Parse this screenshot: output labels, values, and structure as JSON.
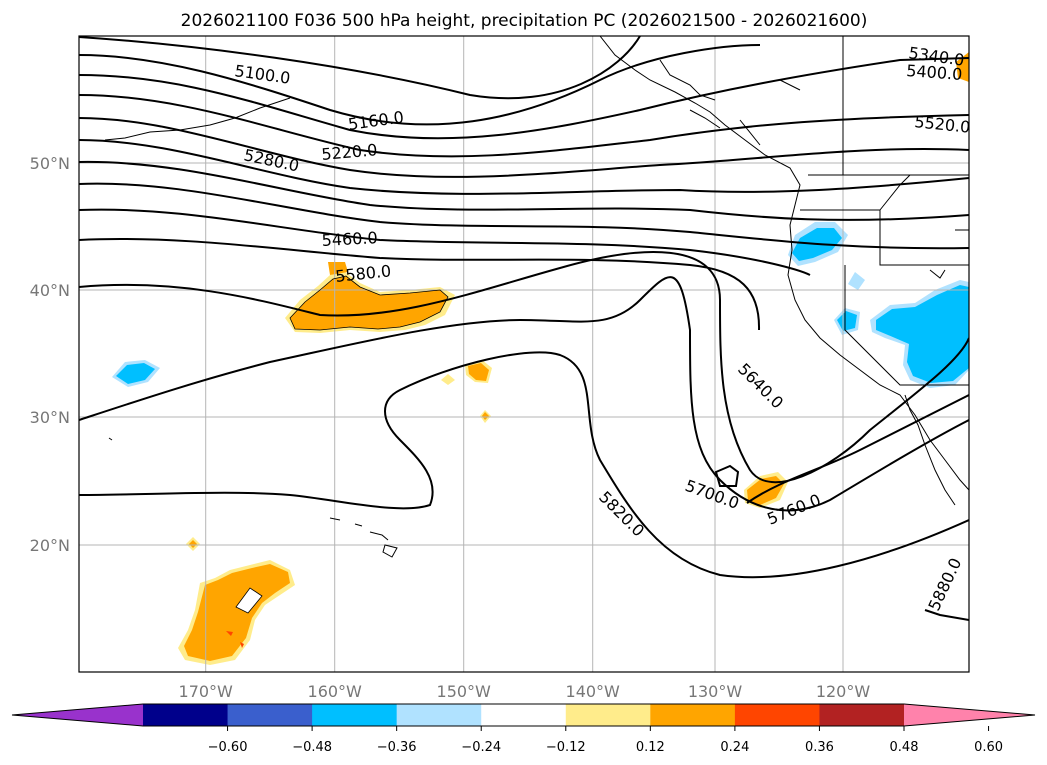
{
  "title": "2026021100 F036 500 hPa height, precipitation PC (2026021500 - 2026021600)",
  "map": {
    "lon_range": [
      -179,
      -110
    ],
    "lat_range": [
      10,
      60
    ],
    "lon_ticks": [
      {
        "value": -170,
        "label": "170°W"
      },
      {
        "value": -160,
        "label": "160°W"
      },
      {
        "value": -150,
        "label": "150°W"
      },
      {
        "value": -140,
        "label": "140°W"
      },
      {
        "value": -130,
        "label": "130°W"
      },
      {
        "value": -120,
        "label": "120°W"
      }
    ],
    "lat_ticks": [
      {
        "value": 50,
        "label": "50°N"
      },
      {
        "value": 40,
        "label": "40°N"
      },
      {
        "value": 30,
        "label": "30°N"
      },
      {
        "value": 20,
        "label": "20°N"
      }
    ],
    "gridlines": true,
    "contour_labels": [
      "5100.0",
      "5160.0",
      "5220.0",
      "5280.0",
      "5340.0",
      "5400.0",
      "5460.0",
      "5520.0",
      "5580.0",
      "5640.0",
      "5700.0",
      "5760.0",
      "5820.0",
      "5880.0"
    ]
  },
  "colorbar": {
    "colors": [
      "#9932CC",
      "#00008B",
      "#3A5FCD",
      "#00BFFF",
      "#B0E2FF",
      "#FFFFFF",
      "#FFEC8B",
      "#FFA500",
      "#FF4500",
      "#B22222",
      "#FF82AB"
    ],
    "ticks": [
      "−0.60",
      "−0.48",
      "−0.36",
      "−0.24",
      "−0.12",
      "0.12",
      "0.24",
      "0.36",
      "0.48",
      "0.60"
    ]
  }
}
